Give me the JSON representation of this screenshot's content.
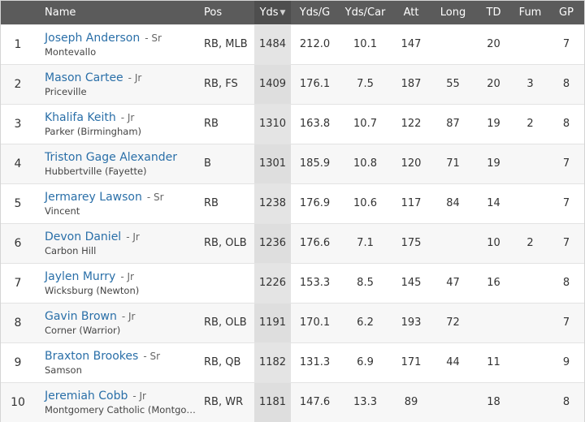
{
  "columns": {
    "name": "Name",
    "pos": "Pos",
    "yds": "Yds",
    "ydsg": "Yds/G",
    "ydscar": "Yds/Car",
    "att": "Att",
    "long": "Long",
    "td": "TD",
    "fum": "Fum",
    "gp": "GP",
    "sort_indicator": "▼"
  },
  "colors": {
    "header_bg": "#5b5b5b",
    "sorted_col_bg": "#e4e4e4",
    "link": "#2a6fa8"
  },
  "rows": [
    {
      "rank": "1",
      "name": "Joseph Anderson",
      "class": "- Sr",
      "school": "Montevallo",
      "pos": "RB, MLB",
      "yds": "1484",
      "ydsg": "212.0",
      "ydscar": "10.1",
      "att": "147",
      "long": "",
      "td": "20",
      "fum": "",
      "gp": "7"
    },
    {
      "rank": "2",
      "name": "Mason Cartee",
      "class": "- Jr",
      "school": "Priceville",
      "pos": "RB, FS",
      "yds": "1409",
      "ydsg": "176.1",
      "ydscar": "7.5",
      "att": "187",
      "long": "55",
      "td": "20",
      "fum": "3",
      "gp": "8"
    },
    {
      "rank": "3",
      "name": "Khalifa Keith",
      "class": "- Jr",
      "school": "Parker (Birmingham)",
      "pos": "RB",
      "yds": "1310",
      "ydsg": "163.8",
      "ydscar": "10.7",
      "att": "122",
      "long": "87",
      "td": "19",
      "fum": "2",
      "gp": "8"
    },
    {
      "rank": "4",
      "name": "Triston Gage Alexander",
      "class": "",
      "school": "Hubbertville (Fayette)",
      "pos": "B",
      "yds": "1301",
      "ydsg": "185.9",
      "ydscar": "10.8",
      "att": "120",
      "long": "71",
      "td": "19",
      "fum": "",
      "gp": "7"
    },
    {
      "rank": "5",
      "name": "Jermarey Lawson",
      "class": "- Sr",
      "school": "Vincent",
      "pos": "RB",
      "yds": "1238",
      "ydsg": "176.9",
      "ydscar": "10.6",
      "att": "117",
      "long": "84",
      "td": "14",
      "fum": "",
      "gp": "7"
    },
    {
      "rank": "6",
      "name": "Devon Daniel",
      "class": "- Jr",
      "school": "Carbon Hill",
      "pos": "RB, OLB",
      "yds": "1236",
      "ydsg": "176.6",
      "ydscar": "7.1",
      "att": "175",
      "long": "",
      "td": "10",
      "fum": "2",
      "gp": "7"
    },
    {
      "rank": "7",
      "name": "Jaylen Murry",
      "class": "- Jr",
      "school": "Wicksburg (Newton)",
      "pos": "",
      "yds": "1226",
      "ydsg": "153.3",
      "ydscar": "8.5",
      "att": "145",
      "long": "47",
      "td": "16",
      "fum": "",
      "gp": "8"
    },
    {
      "rank": "8",
      "name": "Gavin Brown",
      "class": "- Jr",
      "school": "Corner (Warrior)",
      "pos": "RB, OLB",
      "yds": "1191",
      "ydsg": "170.1",
      "ydscar": "6.2",
      "att": "193",
      "long": "72",
      "td": "",
      "fum": "",
      "gp": "7"
    },
    {
      "rank": "9",
      "name": "Braxton Brookes",
      "class": "- Sr",
      "school": "Samson",
      "pos": "RB, QB",
      "yds": "1182",
      "ydsg": "131.3",
      "ydscar": "6.9",
      "att": "171",
      "long": "44",
      "td": "11",
      "fum": "",
      "gp": "9"
    },
    {
      "rank": "10",
      "name": "Jeremiah Cobb",
      "class": "- Jr",
      "school": "Montgomery Catholic (Montgom…",
      "pos": "RB, WR",
      "yds": "1181",
      "ydsg": "147.6",
      "ydscar": "13.3",
      "att": "89",
      "long": "",
      "td": "18",
      "fum": "",
      "gp": "8"
    }
  ]
}
